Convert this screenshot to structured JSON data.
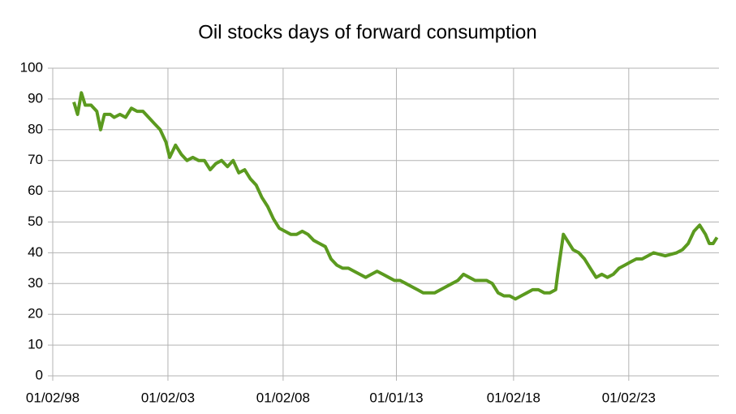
{
  "chart_data": {
    "type": "line",
    "title": "Oil stocks days of forward consumption",
    "x": [
      "1999-01",
      "1999-03",
      "1999-05",
      "1999-07",
      "1999-10",
      "2000-01",
      "2000-03",
      "2000-05",
      "2000-08",
      "2000-10",
      "2001-01",
      "2001-04",
      "2001-07",
      "2001-10",
      "2002-01",
      "2002-04",
      "2002-07",
      "2002-10",
      "2003-01",
      "2003-03",
      "2003-06",
      "2003-09",
      "2003-12",
      "2004-03",
      "2004-06",
      "2004-09",
      "2004-12",
      "2005-03",
      "2005-06",
      "2005-09",
      "2005-12",
      "2006-03",
      "2006-06",
      "2006-09",
      "2006-12",
      "2007-03",
      "2007-06",
      "2007-09",
      "2007-12",
      "2008-03",
      "2008-06",
      "2008-09",
      "2008-12",
      "2009-03",
      "2009-06",
      "2009-09",
      "2009-12",
      "2010-03",
      "2010-06",
      "2010-09",
      "2010-12",
      "2011-03",
      "2011-06",
      "2011-09",
      "2011-12",
      "2012-03",
      "2012-06",
      "2012-09",
      "2012-12",
      "2013-03",
      "2013-06",
      "2013-09",
      "2013-12",
      "2014-03",
      "2014-06",
      "2014-09",
      "2014-12",
      "2015-03",
      "2015-06",
      "2015-09",
      "2015-12",
      "2016-03",
      "2016-06",
      "2016-09",
      "2016-12",
      "2017-03",
      "2017-06",
      "2017-09",
      "2017-12",
      "2018-03",
      "2018-06",
      "2018-09",
      "2018-12",
      "2019-03",
      "2019-06",
      "2019-09",
      "2019-12",
      "2020-01",
      "2020-04",
      "2020-06",
      "2020-09",
      "2020-12",
      "2021-03",
      "2021-06",
      "2021-09",
      "2021-12",
      "2022-03",
      "2022-06",
      "2022-09",
      "2022-12",
      "2023-03",
      "2023-06",
      "2023-09",
      "2024-03",
      "2024-09",
      "2025-03",
      "2025-06",
      "2025-09",
      "2025-12",
      "2026-03",
      "2026-06",
      "2026-08",
      "2026-10",
      "2026-12"
    ],
    "series": [
      {
        "name": "Oil stocks days of forward consumption",
        "color": "#5b9a1f",
        "values": [
          89,
          85,
          92,
          88,
          88,
          86,
          80,
          85,
          85,
          84,
          85,
          84,
          87,
          86,
          86,
          84,
          82,
          80,
          76,
          71,
          75,
          72,
          70,
          71,
          70,
          70,
          67,
          69,
          70,
          68,
          70,
          66,
          67,
          64,
          62,
          58,
          55,
          51,
          48,
          47,
          46,
          46,
          47,
          46,
          44,
          43,
          42,
          38,
          36,
          35,
          35,
          34,
          33,
          32,
          33,
          34,
          33,
          32,
          31,
          31,
          30,
          29,
          28,
          27,
          27,
          27,
          28,
          29,
          30,
          31,
          33,
          32,
          31,
          31,
          31,
          30,
          27,
          26,
          26,
          25,
          26,
          27,
          28,
          28,
          27,
          27,
          28,
          33,
          46,
          44,
          41,
          40,
          38,
          35,
          32,
          33,
          32,
          33,
          35,
          36,
          37,
          38,
          38,
          40,
          39,
          40,
          41,
          43,
          47,
          49,
          46,
          43,
          43,
          45
        ]
      }
    ],
    "xlim": [
      "1998-02-01",
      "2027-01-01"
    ],
    "xticks": [
      {
        "value": "1998-02-01",
        "label": "01/02/98"
      },
      {
        "value": "2003-02-01",
        "label": "01/02/03"
      },
      {
        "value": "2008-02-01",
        "label": "01/02/08"
      },
      {
        "value": "2013-01-01",
        "label": "01/01/13"
      },
      {
        "value": "2018-02-01",
        "label": "01/02/18"
      },
      {
        "value": "2023-02-01",
        "label": "01/02/23"
      }
    ],
    "ylim": [
      0,
      100
    ],
    "yticks": [
      0,
      10,
      20,
      30,
      40,
      50,
      60,
      70,
      80,
      90,
      100
    ],
    "grid": true
  }
}
